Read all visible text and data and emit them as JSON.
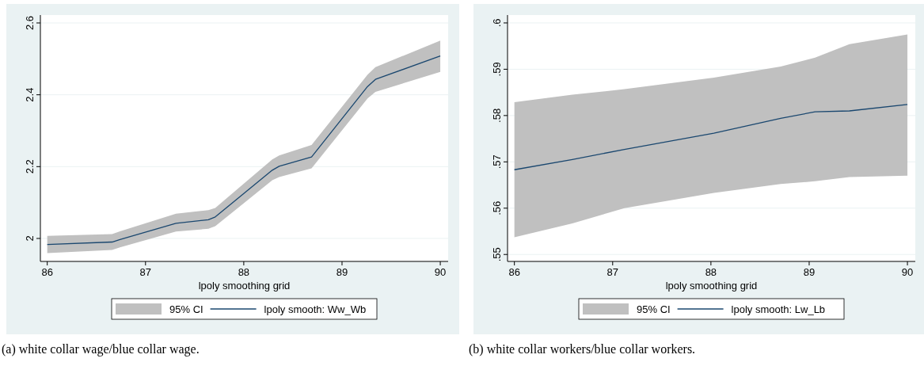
{
  "chart_data": [
    {
      "type": "line",
      "xlabel": "lpoly smoothing grid",
      "xlim": [
        85.93,
        90.08
      ],
      "xticks": [
        86,
        87,
        88,
        89,
        90
      ],
      "ylim": [
        1.936,
        2.622
      ],
      "yticks": [
        2,
        2.2,
        2.4,
        2.6
      ],
      "grid": "y",
      "legend": "bottom",
      "annotations": [
        "(a) white collar wage/blue collar wage."
      ],
      "series": [
        {
          "type": "area",
          "name": "95% CI",
          "color": "#c0c0c0",
          "x": [
            86,
            86.66,
            86.74,
            87.31,
            87.64,
            87.71,
            88.29,
            88.36,
            88.69,
            89.26,
            89.34,
            90
          ],
          "values": [
            null,
            null,
            null,
            null,
            null,
            null,
            null,
            null,
            null,
            null,
            null,
            null
          ],
          "lower": [
            1.959,
            1.968,
            1.975,
            2.019,
            2.027,
            2.034,
            2.162,
            2.171,
            2.195,
            2.39,
            2.408,
            2.464
          ],
          "upper": [
            2.007,
            2.012,
            2.02,
            2.069,
            2.079,
            2.085,
            2.22,
            2.231,
            2.26,
            2.456,
            2.477,
            2.551
          ]
        },
        {
          "type": "line",
          "name": "lpoly smooth: Ww_Wb",
          "color": "#1a476f",
          "x": [
            86,
            86.66,
            86.74,
            87.31,
            87.64,
            87.71,
            88.29,
            88.36,
            88.69,
            89.26,
            89.34,
            90
          ],
          "values": [
            1.983,
            1.99,
            1.997,
            2.042,
            2.052,
            2.06,
            2.19,
            2.201,
            2.227,
            2.423,
            2.443,
            2.508
          ]
        }
      ]
    },
    {
      "type": "line",
      "xlabel": "lpoly smoothing grid",
      "xlim": [
        85.93,
        90.08
      ],
      "xticks": [
        86,
        87,
        88,
        89,
        90
      ],
      "ylim": [
        0.5485,
        0.6017
      ],
      "yticks": [
        {
          "value": 0.55,
          "label": ".55"
        },
        {
          "value": 0.56,
          "label": ".56"
        },
        {
          "value": 0.57,
          "label": ".57"
        },
        {
          "value": 0.58,
          "label": ".58"
        },
        {
          "value": 0.59,
          "label": ".59"
        },
        {
          "value": 0.6,
          "label": ".6"
        }
      ],
      "grid": "y",
      "legend": "bottom",
      "annotations": [
        "(b) white collar workers/blue collar workers."
      ],
      "series": [
        {
          "type": "area",
          "name": "95% CI",
          "color": "#c0c0c0",
          "x": [
            86,
            86.59,
            87.12,
            88.03,
            88.71,
            89.06,
            89.41,
            90
          ],
          "values": [
            null,
            null,
            null,
            null,
            null,
            null,
            null,
            null
          ],
          "lower": [
            0.5537,
            0.5567,
            0.56,
            0.5633,
            0.5652,
            0.5658,
            0.5667,
            0.567
          ],
          "upper": [
            0.5829,
            0.5845,
            0.5857,
            0.5882,
            0.5906,
            0.5925,
            0.5954,
            0.5975
          ]
        },
        {
          "type": "line",
          "name": "lpoly smooth: Lw_Lb",
          "color": "#1a476f",
          "x": [
            86,
            86.59,
            87.12,
            88.03,
            88.71,
            89.06,
            89.41,
            90
          ],
          "values": [
            0.5683,
            0.5705,
            0.5727,
            0.5762,
            0.5794,
            0.5808,
            0.581,
            0.5824
          ]
        }
      ]
    }
  ]
}
